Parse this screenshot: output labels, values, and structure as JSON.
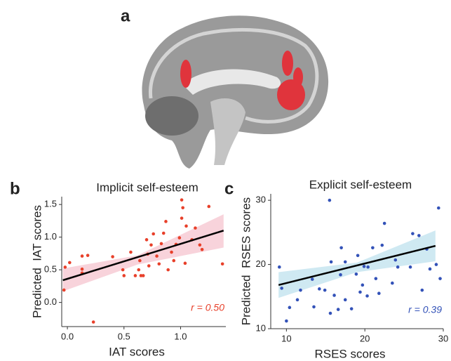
{
  "panel_labels": [
    "a",
    "b",
    "c"
  ],
  "chart_data": [
    {
      "type": "scatter",
      "title": "Implicit self-esteem",
      "x_label": "IAT scores",
      "y_label": "Predicted  IAT scores",
      "color": "#e8402a",
      "band_color": "#f6c4cf",
      "annotation": "r = 0.50",
      "x": [
        -0.03,
        -0.02,
        0.02,
        0.13,
        0.18,
        0.13,
        0.13,
        0.23,
        0.4,
        0.49,
        0.5,
        0.56,
        0.6,
        0.63,
        0.64,
        0.65,
        0.67,
        0.7,
        0.71,
        0.72,
        0.74,
        0.76,
        0.79,
        0.81,
        0.83,
        0.85,
        0.87,
        0.89,
        0.92,
        0.94,
        0.96,
        0.99,
        1.01,
        1.01,
        1.02,
        1.05,
        1.1,
        1.13,
        1.17,
        1.19,
        1.25,
        1.37,
        1.04
      ],
      "values": [
        0.19,
        0.54,
        0.61,
        0.71,
        0.72,
        0.51,
        0.45,
        -0.3,
        0.7,
        0.5,
        0.41,
        0.77,
        0.41,
        0.5,
        0.64,
        0.41,
        0.41,
        0.96,
        0.74,
        0.56,
        0.88,
        1.05,
        0.71,
        0.59,
        0.9,
        1.06,
        1.24,
        0.5,
        0.77,
        0.64,
        0.89,
        0.99,
        1.29,
        1.57,
        1.45,
        1.17,
        0.96,
        1.14,
        0.88,
        0.81,
        1.47,
        0.59,
        0.6
      ],
      "fit": {
        "x": [
          -0.04,
          1.38
        ],
        "y": [
          0.34,
          1.1
        ]
      },
      "confidence_band": {
        "x": [
          -0.04,
          0.62,
          1.38
        ],
        "lower": [
          0.17,
          0.58,
          0.84
        ],
        "upper": [
          0.52,
          0.72,
          1.35
        ]
      },
      "xlim": [
        -0.05,
        1.4
      ],
      "ylim": [
        -0.37,
        1.62
      ],
      "xticks": [
        {
          "value": 0,
          "label": "0.0"
        },
        0.5,
        {
          "value": 1,
          "label": "1.0"
        }
      ],
      "yticks": [
        {
          "value": 0,
          "label": "0.0"
        },
        0.5,
        {
          "value": 1,
          "label": "1.0"
        },
        1.5
      ]
    },
    {
      "type": "scatter",
      "title": "Explicit self-esteem",
      "x_label": "RSES scores",
      "y_label": "Predicted  RSES scores",
      "color": "#3352b8",
      "band_color": "#bfe1ee",
      "annotation": "r = 0.39",
      "x": [
        9.1,
        9.4,
        10.0,
        10.4,
        11.4,
        11.8,
        13.3,
        13.5,
        14.2,
        14.9,
        15.7,
        15.5,
        15.6,
        16.1,
        16.6,
        16.9,
        17.0,
        17.5,
        17.5,
        18.3,
        18.9,
        19.1,
        19.4,
        19.7,
        19.9,
        20.3,
        20.4,
        21.0,
        21.4,
        21.8,
        22.2,
        22.5,
        23.5,
        23.9,
        24.2,
        25.8,
        26.1,
        26.9,
        27.3,
        27.9,
        28.3,
        29.1,
        29.4,
        29.6
      ],
      "values": [
        19.6,
        16.3,
        11.2,
        13.3,
        14.5,
        16.0,
        17.7,
        13.4,
        16.2,
        16.0,
        20.4,
        30.0,
        12.4,
        15.2,
        13.0,
        18.4,
        22.6,
        14.5,
        20.4,
        13.1,
        18.5,
        21.4,
        15.7,
        16.8,
        19.7,
        15.1,
        19.6,
        22.6,
        17.8,
        15.5,
        23.0,
        26.4,
        17.1,
        20.7,
        19.6,
        19.6,
        24.8,
        24.5,
        16.0,
        22.4,
        19.3,
        20.0,
        28.8,
        17.8
      ],
      "fit": {
        "x": [
          9,
          29
        ],
        "y": [
          16.8,
          22.9
        ]
      },
      "confidence_band": {
        "x": [
          9,
          19,
          29
        ],
        "lower": [
          14.8,
          18.8,
          20.5
        ],
        "upper": [
          18.8,
          20.3,
          25.3
        ]
      },
      "xlim": [
        8,
        30
      ],
      "ylim": [
        10,
        31
      ],
      "xticks": [
        10,
        20,
        30
      ],
      "yticks": [
        10,
        20,
        30
      ]
    }
  ]
}
